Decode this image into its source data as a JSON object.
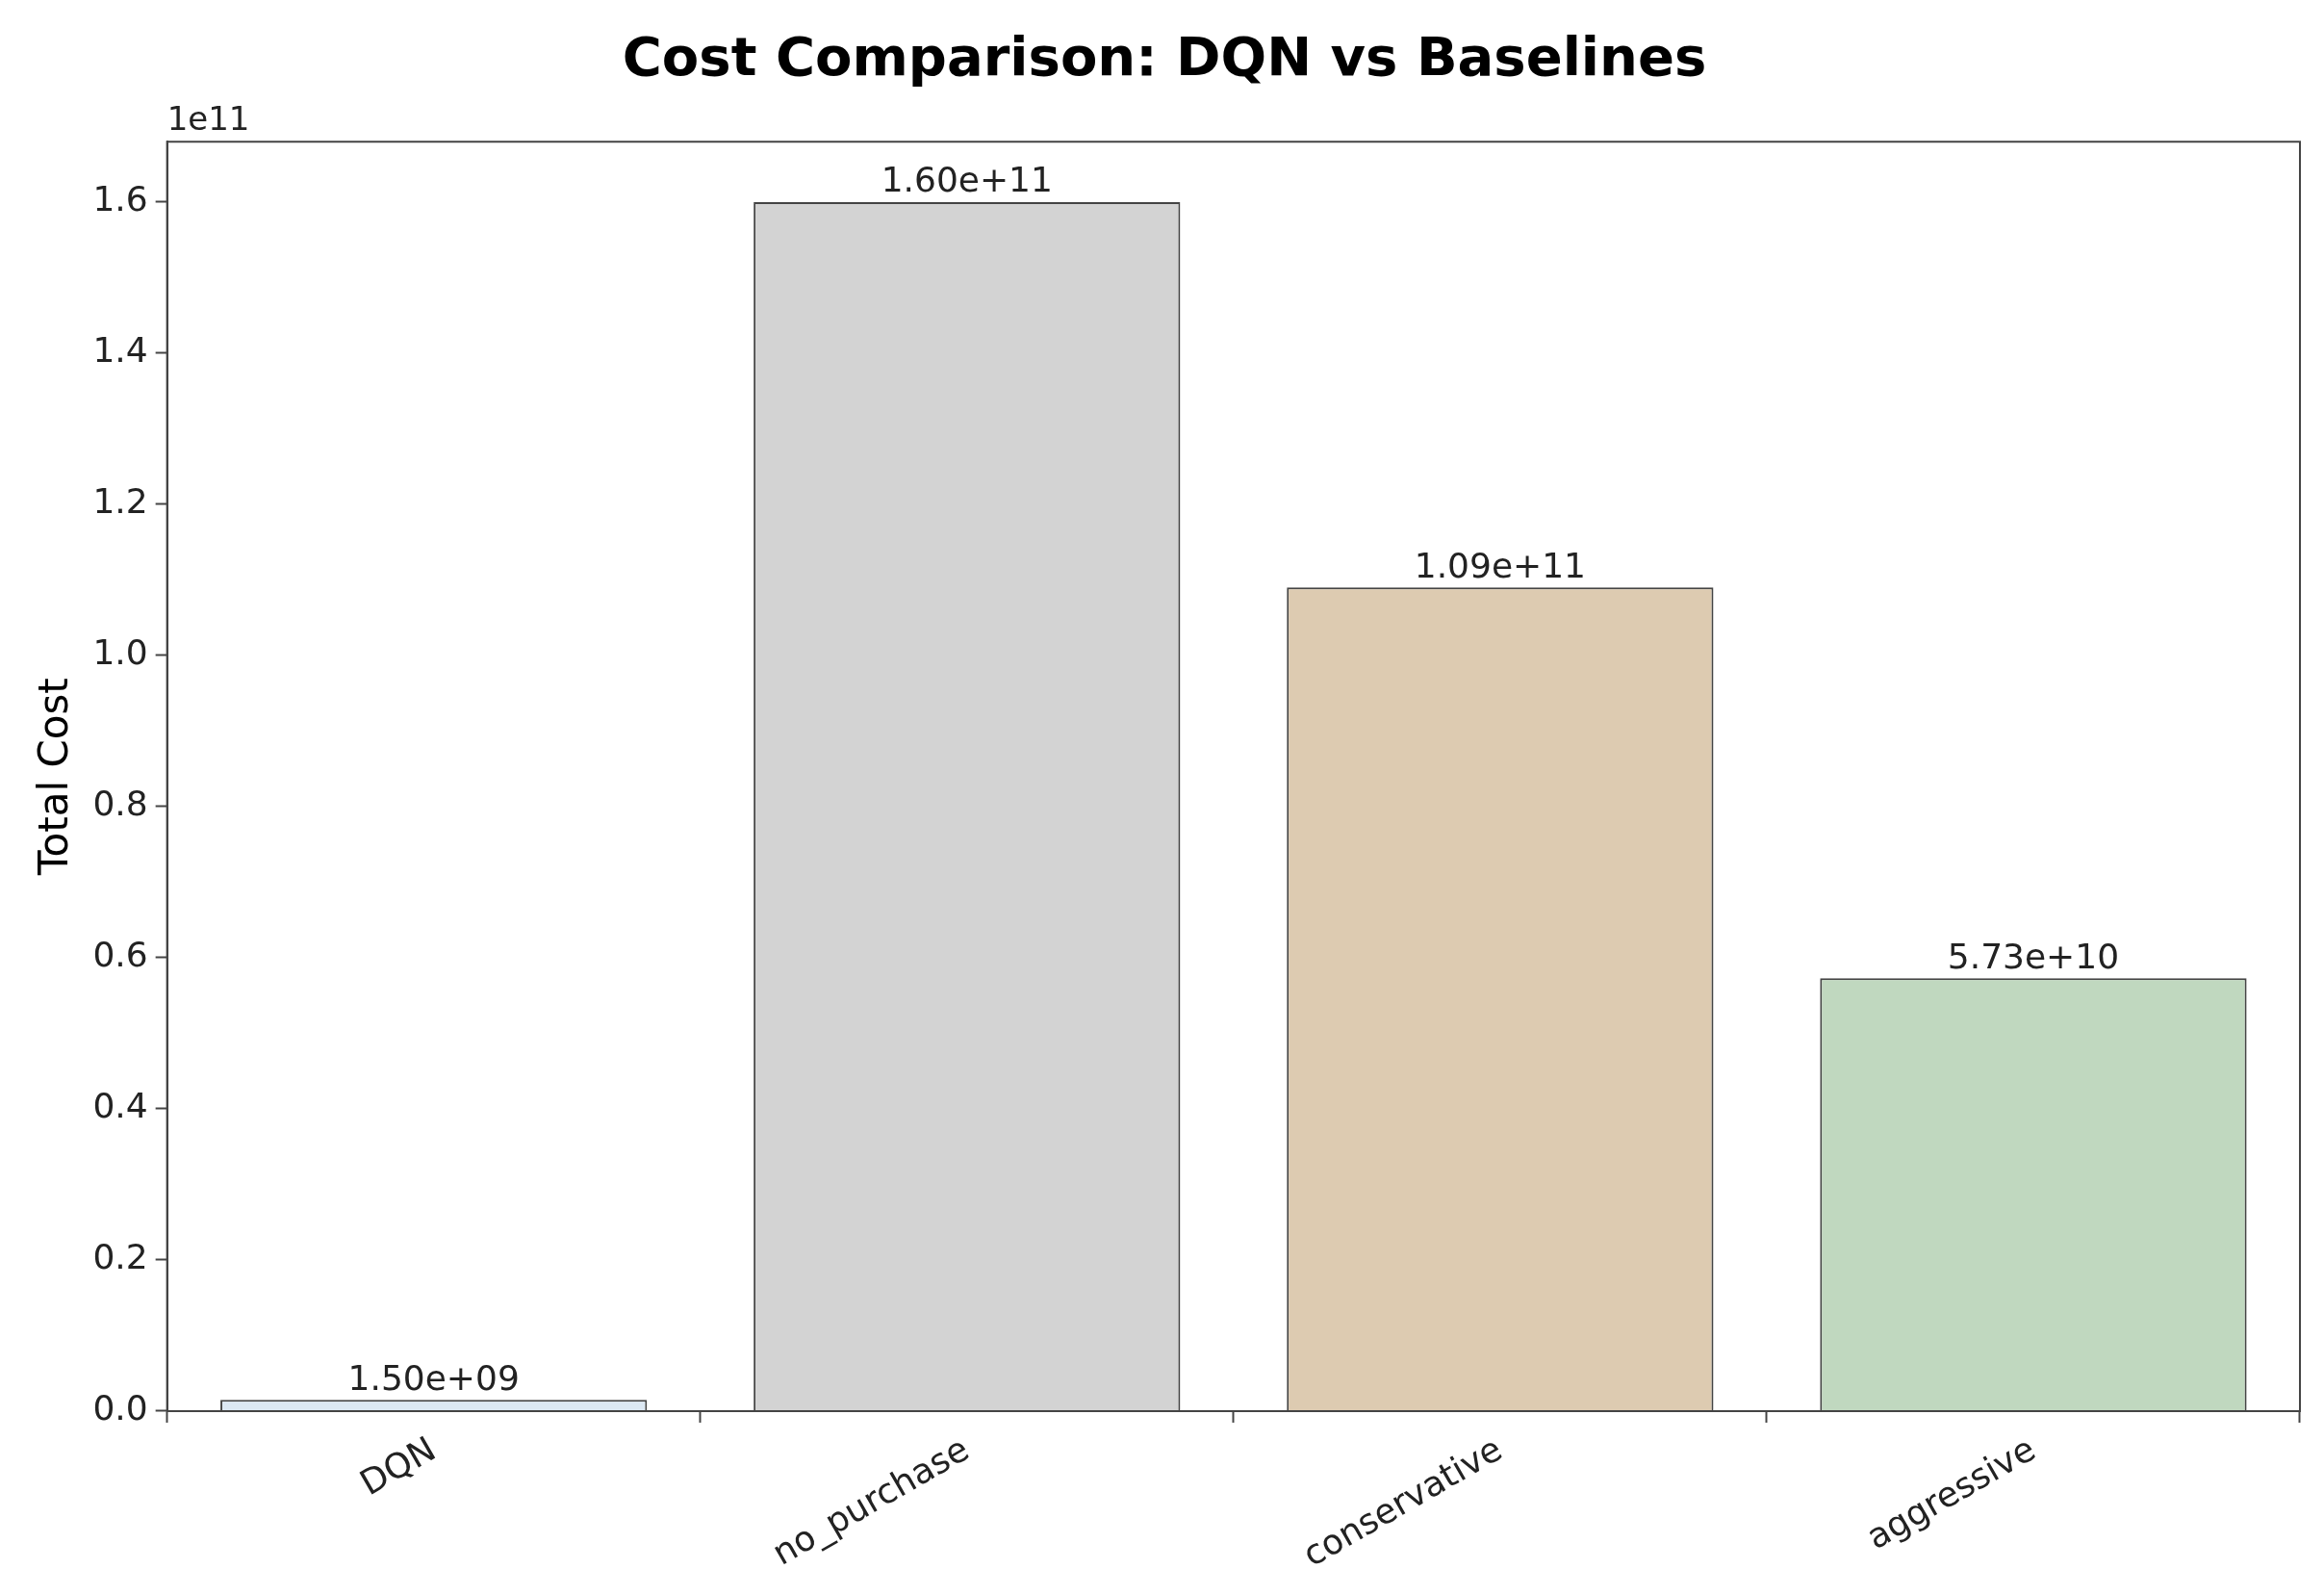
{
  "chart_data": {
    "type": "bar",
    "title": "Cost Comparison: DQN vs Baselines",
    "ylabel": "Total Cost",
    "categories": [
      "DQN",
      "no_purchase",
      "conservative",
      "aggressive"
    ],
    "values": [
      0.015,
      1.6,
      1.09,
      0.573
    ],
    "colors": [
      "#dce8f3",
      "#d3d3d3",
      "#ddcbb1",
      "#c0d8bf"
    ],
    "ylim": [
      0,
      1.68
    ],
    "yticks": [
      {
        "value": 0,
        "label": "0.0"
      },
      {
        "value": 0.2,
        "label": "0.2"
      },
      {
        "value": 0.4,
        "label": "0.4"
      },
      {
        "value": 0.6,
        "label": "0.6"
      },
      {
        "value": 0.8,
        "label": "0.8"
      },
      {
        "value": 1,
        "label": "1.0"
      },
      {
        "value": 1.2,
        "label": "1.2"
      },
      {
        "value": 1.4,
        "label": "1.4"
      },
      {
        "value": 1.6,
        "label": "1.6"
      }
    ],
    "annotations": [
      "1e11",
      {
        "text": "1.50e+09",
        "x": "DQN",
        "y": 0.015
      },
      {
        "text": "1.60e+11",
        "x": "no_purchase",
        "y": 1.6
      },
      {
        "text": "1.09e+11",
        "x": "conservative",
        "y": 1.09
      },
      {
        "text": "5.73e+10",
        "x": "aggressive",
        "y": 0.573
      }
    ],
    "grid": false,
    "legend": false
  }
}
